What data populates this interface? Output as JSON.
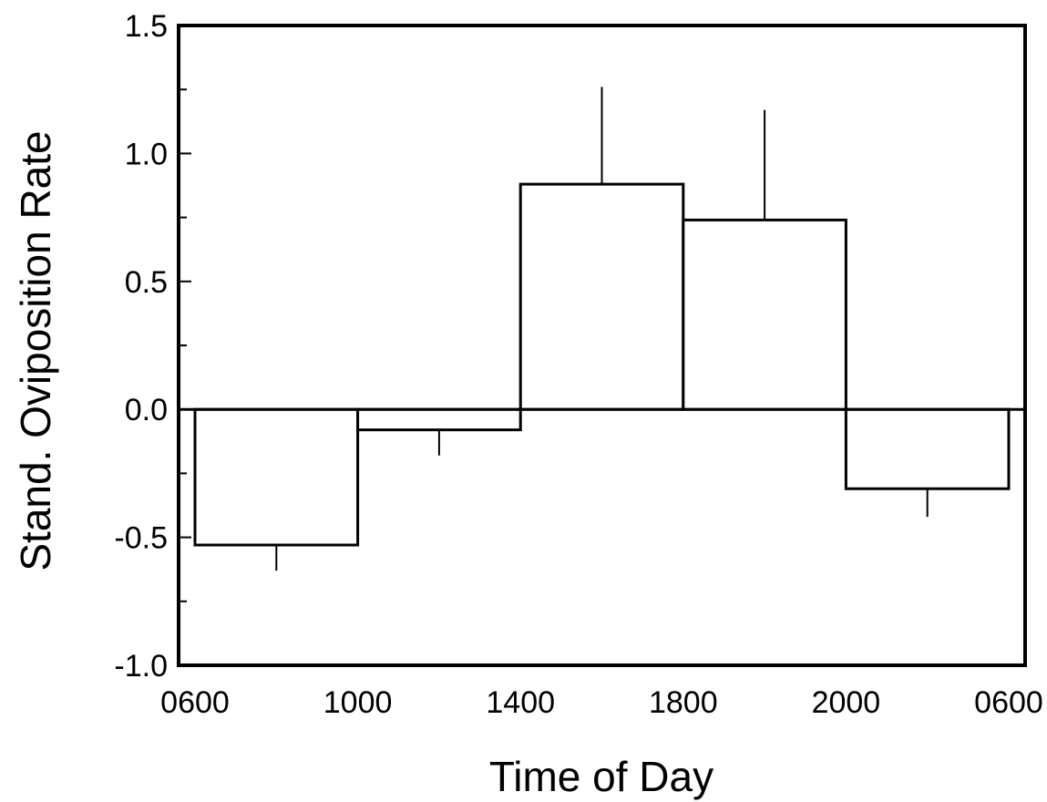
{
  "chart_data": {
    "type": "bar",
    "title": "",
    "xlabel": "Time of Day",
    "ylabel": "Stand. Oviposition Rate",
    "ylim": [
      -1.0,
      1.5
    ],
    "yticks": [
      "-1.0",
      "-0.5",
      "0.0",
      "0.5",
      "1.0",
      "1.5"
    ],
    "ytick_values": [
      -1.0,
      -0.5,
      0.0,
      0.5,
      1.0,
      1.5
    ],
    "xtick_labels": [
      "0600",
      "1000",
      "1400",
      "1800",
      "2000",
      "0600"
    ],
    "bars": [
      {
        "interval": "0600-1000",
        "value": -0.53,
        "error": 0.1
      },
      {
        "interval": "1000-1400",
        "value": -0.08,
        "error": 0.1
      },
      {
        "interval": "1400-1800",
        "value": 0.88,
        "error": 0.38
      },
      {
        "interval": "1800-2000",
        "value": 0.74,
        "error": 0.43
      },
      {
        "interval": "2000-0600",
        "value": -0.31,
        "error": 0.11
      }
    ],
    "grid": false,
    "legend": "none",
    "colors": {
      "bar_fill": "#ffffff",
      "stroke": "#000000"
    }
  }
}
